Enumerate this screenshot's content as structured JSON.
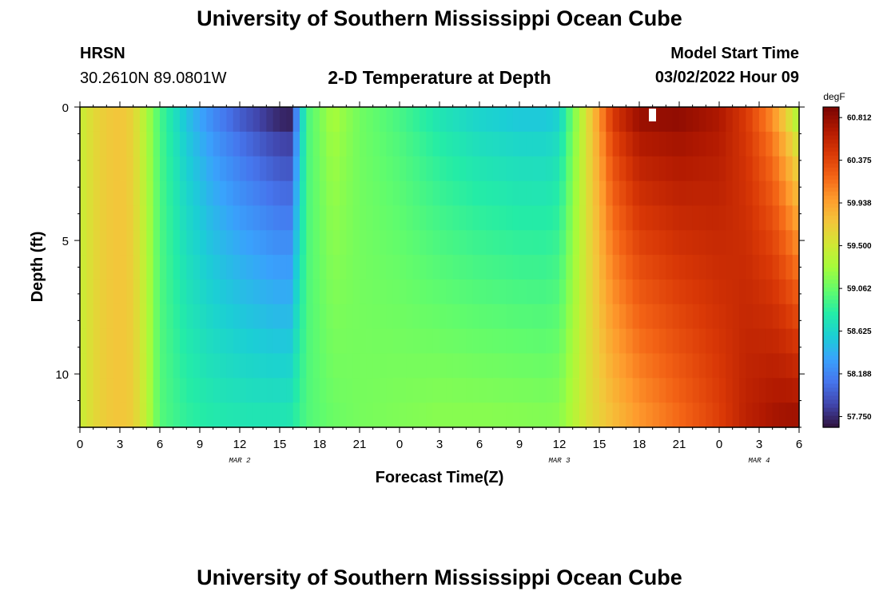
{
  "header": {
    "title": "University of Southern Mississippi Ocean Cube",
    "station": "HRSN",
    "location": "30.2610N  89.0801W",
    "subtitle": "2-D Temperature at Depth",
    "model_start_label": "Model Start Time",
    "model_start_value": "03/02/2022 Hour 09"
  },
  "footer": {
    "title": "University of Southern Mississippi Ocean Cube"
  },
  "chart_data": {
    "type": "heatmap",
    "xlabel": "Forecast Time(Z)",
    "ylabel": "Depth (ft)",
    "colorbar_unit": "degF",
    "x_ticks": [
      "0",
      "3",
      "6",
      "9",
      "12",
      "15",
      "18",
      "21",
      "0",
      "3",
      "6",
      "9",
      "12",
      "15",
      "18",
      "21",
      "0",
      "3",
      "6"
    ],
    "date_labels": [
      {
        "label": "MAR 2",
        "hour": 12
      },
      {
        "label": "MAR 3",
        "hour": 36
      },
      {
        "label": "MAR 4",
        "hour": 51
      }
    ],
    "xlim_hours": [
      0,
      54
    ],
    "y_ticks": [
      0,
      5,
      10
    ],
    "ylim": [
      0,
      12
    ],
    "y_inverted": true,
    "color_ticks": [
      57.75,
      58.188,
      58.625,
      59.062,
      59.5,
      59.938,
      60.375,
      60.812
    ],
    "color_range": [
      57.64,
      60.92
    ],
    "colormap": [
      "#30123b",
      "#4145ab",
      "#4675ed",
      "#39a2fc",
      "#1bcfd4",
      "#24eca6",
      "#61fc6c",
      "#a4fc3b",
      "#d1e834",
      "#f3c63a",
      "#fe9b2d",
      "#f36315",
      "#d93806",
      "#b11901",
      "#7a0402"
    ],
    "depth_levels_ft": [
      0,
      1,
      2,
      3,
      4,
      5,
      6,
      7,
      8,
      9,
      10,
      11,
      12
    ],
    "temperature_profile": {
      "hours": [
        0,
        1,
        2,
        3,
        4,
        5,
        6,
        8,
        10,
        12,
        14,
        15,
        15.8,
        16.3,
        17,
        19,
        21,
        24,
        27,
        30,
        33,
        35,
        36,
        37,
        38,
        40,
        42,
        45,
        48,
        50,
        52,
        53,
        54
      ],
      "surface": [
        59.45,
        59.62,
        59.72,
        59.76,
        59.66,
        59.32,
        58.95,
        58.52,
        58.22,
        58.0,
        57.82,
        57.74,
        57.72,
        58.25,
        58.95,
        59.3,
        59.1,
        58.95,
        58.75,
        58.62,
        58.55,
        58.55,
        58.62,
        59.1,
        59.55,
        60.45,
        60.78,
        60.82,
        60.7,
        60.45,
        60.05,
        59.7,
        59.3
      ],
      "bottom": [
        59.45,
        59.62,
        59.72,
        59.76,
        59.7,
        59.4,
        59.0,
        58.85,
        58.78,
        58.75,
        58.74,
        58.74,
        58.76,
        58.85,
        58.98,
        59.08,
        59.12,
        59.15,
        59.18,
        59.18,
        59.17,
        59.16,
        59.18,
        59.35,
        59.55,
        59.8,
        60.0,
        60.2,
        60.42,
        60.62,
        60.72,
        60.75,
        60.75
      ]
    }
  }
}
